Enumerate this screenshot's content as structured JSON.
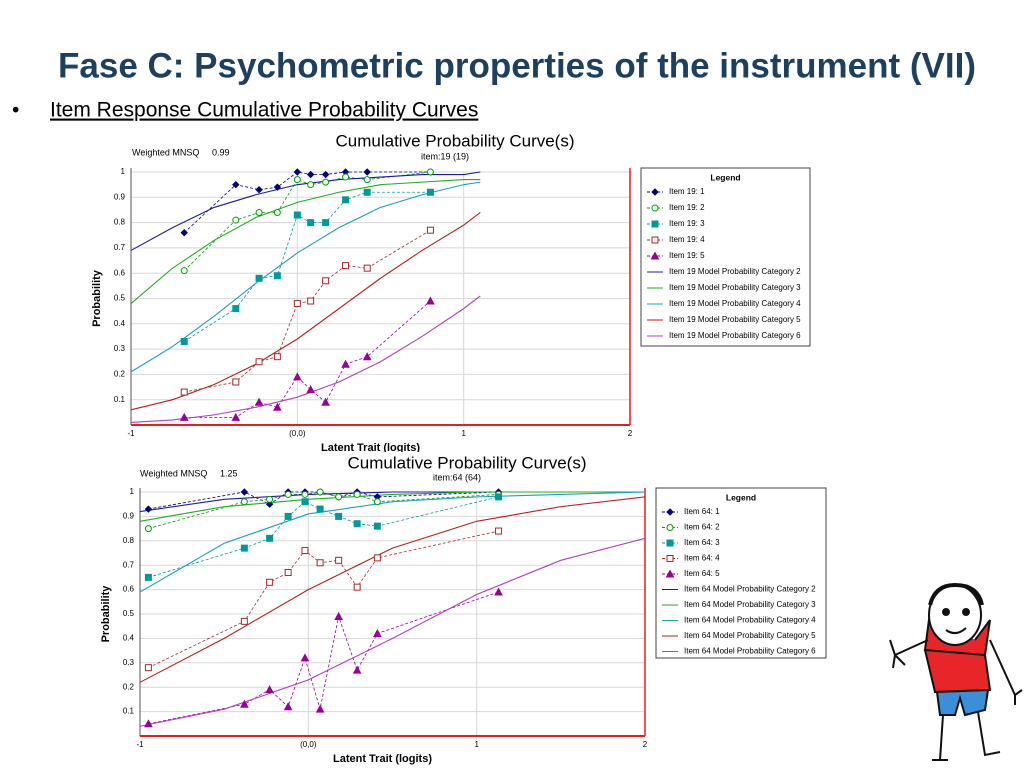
{
  "title": "Fase C: Psychometric properties of the instrument (VII)",
  "bullet": "Item Response Cumulative Probability Curves",
  "chart_data": [
    {
      "type": "line",
      "title": "Cumulative Probability Curve(s)",
      "subtitle": "item:19 (19)",
      "mnsq_label": "Weighted MNSQ",
      "mnsq_value": 0.99,
      "xlabel": "Latent Trait (logits)",
      "ylabel": "Probability",
      "legend_title": "Legend",
      "xlim": [
        -1,
        2
      ],
      "ylim": [
        0,
        1
      ],
      "xticks": [
        -1,
        {
          "value": 0,
          "label": "(0,0)"
        },
        1,
        2
      ],
      "yticks": [
        0.1,
        0.2,
        0.3,
        0.4,
        0.5,
        0.6,
        0.7,
        0.8,
        0.9,
        1
      ],
      "grid": true,
      "series": [
        {
          "name": "Item 19: 1",
          "color": "#00007f",
          "marker": "diamond",
          "dashed": true,
          "x": [
            -0.68,
            -0.37,
            -0.23,
            -0.12,
            0,
            0.08,
            0.17,
            0.29,
            0.42,
            0.8
          ],
          "values": [
            0.76,
            0.95,
            0.93,
            0.94,
            1.0,
            0.99,
            0.99,
            1.0,
            1.0,
            1.0
          ]
        },
        {
          "name": "Item 19: 2",
          "color": "#00a000",
          "marker": "circle-open",
          "dashed": true,
          "x": [
            -0.68,
            -0.37,
            -0.23,
            -0.12,
            0,
            0.08,
            0.17,
            0.29,
            0.42,
            0.8
          ],
          "values": [
            0.61,
            0.81,
            0.84,
            0.84,
            0.97,
            0.95,
            0.96,
            0.98,
            0.97,
            1.0
          ]
        },
        {
          "name": "Item 19: 3",
          "color": "#009999",
          "marker": "square",
          "dashed": true,
          "x": [
            -0.68,
            -0.37,
            -0.23,
            -0.12,
            0,
            0.08,
            0.17,
            0.29,
            0.42,
            0.8
          ],
          "values": [
            0.33,
            0.46,
            0.58,
            0.59,
            0.83,
            0.8,
            0.8,
            0.89,
            0.92,
            0.92
          ]
        },
        {
          "name": "Item 19: 4",
          "color": "#a52a2a",
          "marker": "square-open",
          "dashed": true,
          "x": [
            -0.68,
            -0.37,
            -0.23,
            -0.12,
            0,
            0.08,
            0.17,
            0.29,
            0.42,
            0.8
          ],
          "values": [
            0.13,
            0.17,
            0.25,
            0.27,
            0.48,
            0.49,
            0.57,
            0.63,
            0.62,
            0.77
          ]
        },
        {
          "name": "Item 19: 5",
          "color": "#990099",
          "marker": "triangle",
          "dashed": true,
          "x": [
            -0.68,
            -0.37,
            -0.23,
            -0.12,
            0,
            0.08,
            0.17,
            0.29,
            0.42,
            0.8
          ],
          "values": [
            0.03,
            0.03,
            0.09,
            0.07,
            0.19,
            0.14,
            0.09,
            0.24,
            0.27,
            0.49
          ]
        },
        {
          "name": "Item 19 Model Probability Category 2",
          "color": "#1c1c9c",
          "dashed": false,
          "x": [
            -1,
            -0.75,
            -0.5,
            -0.25,
            0,
            0.25,
            0.5,
            0.75,
            1,
            1.1
          ],
          "values": [
            0.69,
            0.78,
            0.86,
            0.91,
            0.95,
            0.97,
            0.98,
            0.99,
            0.99,
            1.0
          ]
        },
        {
          "name": "Item 19 Model Probability Category 3",
          "color": "#22aa22",
          "dashed": false,
          "x": [
            -1,
            -0.75,
            -0.5,
            -0.25,
            0,
            0.25,
            0.5,
            0.75,
            1,
            1.1
          ],
          "values": [
            0.48,
            0.62,
            0.73,
            0.82,
            0.88,
            0.92,
            0.95,
            0.96,
            0.97,
            0.97
          ]
        },
        {
          "name": "Item 19 Model Probability Category 4",
          "color": "#1a9fbf",
          "dashed": false,
          "x": [
            -1,
            -0.75,
            -0.5,
            -0.25,
            0,
            0.25,
            0.5,
            0.75,
            1,
            1.1
          ],
          "values": [
            0.21,
            0.31,
            0.43,
            0.56,
            0.68,
            0.78,
            0.86,
            0.91,
            0.95,
            0.96
          ]
        },
        {
          "name": "Item 19 Model Probability Category 5",
          "color": "#b22222",
          "dashed": false,
          "x": [
            -1,
            -0.75,
            -0.5,
            -0.25,
            0,
            0.25,
            0.5,
            0.75,
            1,
            1.1
          ],
          "values": [
            0.06,
            0.1,
            0.16,
            0.24,
            0.34,
            0.46,
            0.58,
            0.69,
            0.79,
            0.84
          ]
        },
        {
          "name": "Item 19 Model Probability Category 6",
          "color": "#b040c0",
          "dashed": false,
          "x": [
            -1,
            -0.75,
            -0.5,
            -0.25,
            0,
            0.25,
            0.5,
            0.75,
            1,
            1.1
          ],
          "values": [
            0.01,
            0.02,
            0.04,
            0.07,
            0.11,
            0.17,
            0.25,
            0.35,
            0.46,
            0.51
          ]
        }
      ]
    },
    {
      "type": "line",
      "title": "Cumulative Probability Curve(s)",
      "subtitle": "item:64 (64)",
      "mnsq_label": "Weighted MNSQ",
      "mnsq_value": 1.25,
      "xlabel": "Latent Trait (logits)",
      "ylabel": "Probability",
      "legend_title": "Legend",
      "xlim": [
        -1,
        2
      ],
      "ylim": [
        0,
        1
      ],
      "xticks": [
        -1,
        {
          "value": 0,
          "label": "(0,0)"
        },
        1,
        2
      ],
      "yticks": [
        0.1,
        0.2,
        0.3,
        0.4,
        0.5,
        0.6,
        0.7,
        0.8,
        0.9,
        1
      ],
      "grid": true,
      "series": [
        {
          "name": "Item 64: 1",
          "color": "#00007f",
          "marker": "diamond",
          "dashed": true,
          "x": [
            -0.95,
            -0.38,
            -0.23,
            -0.12,
            -0.02,
            0.07,
            0.18,
            0.29,
            0.41,
            1.13
          ],
          "values": [
            0.93,
            1.0,
            0.95,
            1.0,
            1.0,
            1.0,
            0.98,
            1.0,
            0.98,
            1.0
          ]
        },
        {
          "name": "Item 64: 2",
          "color": "#00a000",
          "marker": "circle-open",
          "dashed": true,
          "x": [
            -0.95,
            -0.38,
            -0.23,
            -0.12,
            -0.02,
            0.07,
            0.18,
            0.29,
            0.41,
            1.13
          ],
          "values": [
            0.85,
            0.96,
            0.97,
            0.99,
            0.99,
            1.0,
            0.98,
            0.99,
            0.96,
            0.99
          ]
        },
        {
          "name": "Item 64: 3",
          "color": "#009999",
          "marker": "square",
          "dashed": true,
          "x": [
            -0.95,
            -0.38,
            -0.23,
            -0.12,
            -0.02,
            0.07,
            0.18,
            0.29,
            0.41,
            1.13
          ],
          "values": [
            0.65,
            0.77,
            0.81,
            0.9,
            0.96,
            0.93,
            0.9,
            0.87,
            0.86,
            0.98
          ]
        },
        {
          "name": "Item 64: 4",
          "color": "#a52a2a",
          "marker": "square-open",
          "dashed": true,
          "x": [
            -0.95,
            -0.38,
            -0.23,
            -0.12,
            -0.02,
            0.07,
            0.18,
            0.29,
            0.41,
            1.13
          ],
          "values": [
            0.28,
            0.47,
            0.63,
            0.67,
            0.76,
            0.71,
            0.72,
            0.61,
            0.73,
            0.84
          ]
        },
        {
          "name": "Item 64: 5",
          "color": "#990099",
          "marker": "triangle",
          "dashed": true,
          "x": [
            -0.95,
            -0.38,
            -0.23,
            -0.12,
            -0.02,
            0.07,
            0.18,
            0.29,
            0.41,
            1.13
          ],
          "values": [
            0.05,
            0.13,
            0.19,
            0.12,
            0.32,
            0.11,
            0.49,
            0.27,
            0.42,
            0.59
          ]
        },
        {
          "name": "Item 64 Model Probability Category 2",
          "color": "#1c1c9c",
          "dashed": false,
          "x": [
            -1,
            -0.5,
            0,
            0.5,
            1,
            1.5,
            2
          ],
          "values": [
            0.92,
            0.97,
            0.99,
            1.0,
            1.0,
            1.0,
            1.0
          ]
        },
        {
          "name": "Item 64 Model Probability Category 3",
          "color": "#22aa22",
          "dashed": false,
          "x": [
            -1,
            -0.5,
            0,
            0.5,
            1,
            1.5,
            2
          ],
          "values": [
            0.88,
            0.94,
            0.97,
            0.99,
            1.0,
            1.0,
            1.0
          ]
        },
        {
          "name": "Item 64 Model Probability Category 4",
          "color": "#1a9fbf",
          "dashed": false,
          "x": [
            -1,
            -0.5,
            0,
            0.5,
            1,
            1.5,
            2
          ],
          "values": [
            0.59,
            0.79,
            0.91,
            0.96,
            0.98,
            0.99,
            1.0
          ]
        },
        {
          "name": "Item 64 Model Probability Category 5",
          "color": "#b22222",
          "dashed": false,
          "x": [
            -1,
            -0.5,
            0,
            0.5,
            1,
            1.5,
            2
          ],
          "values": [
            0.22,
            0.4,
            0.6,
            0.77,
            0.88,
            0.94,
            0.98
          ]
        },
        {
          "name": "Item 64 Model Probability Category 6",
          "color": "#b040c0",
          "dashed": false,
          "x": [
            -1,
            -0.5,
            0,
            0.5,
            1,
            1.5,
            2
          ],
          "values": [
            0.04,
            0.11,
            0.23,
            0.4,
            0.58,
            0.72,
            0.81
          ]
        }
      ]
    }
  ]
}
